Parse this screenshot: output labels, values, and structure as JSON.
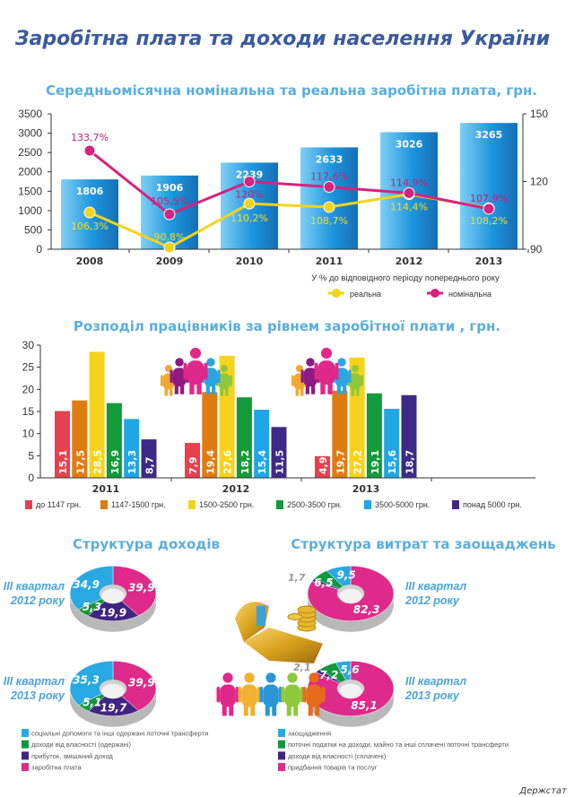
{
  "title": "Заробітна плата та доходи населення України",
  "source": "Держстат",
  "colors": {
    "title": "#3a5aa0",
    "subtitle": "#5aaee0",
    "bar_blue": "#1a8ed6",
    "real": "#f2d31b",
    "nominal": "#d6237f"
  },
  "chart_data": [
    {
      "type": "bar+line",
      "title": "Середньомісячна номінальна та реальна заробітна плата, грн.",
      "categories": [
        "2008",
        "2009",
        "2010",
        "2011",
        "2012",
        "2013"
      ],
      "bars": {
        "values": [
          1806,
          1906,
          2239,
          2633,
          3026,
          3265
        ],
        "labels": [
          "1806",
          "1906",
          "2239",
          "2633",
          "3026",
          "3265"
        ]
      },
      "ylim_left": [
        0,
        3500
      ],
      "yticks_left": [
        "0",
        "500",
        "1000",
        "1500",
        "2000",
        "2500",
        "3000",
        "3500"
      ],
      "ylim_right": [
        90,
        150
      ],
      "yticks_right": [
        "90",
        "120",
        "150"
      ],
      "note": "У % до відповідного періоду попереднього року",
      "series": [
        {
          "name": "реальна",
          "values": [
            106.3,
            90.8,
            110.2,
            108.7,
            114.4,
            108.2
          ],
          "labels": [
            "106,3%",
            "90,8%",
            "110,2%",
            "108,7%",
            "114,4%",
            "108,2%"
          ],
          "color": "#f2d31b"
        },
        {
          "name": "номінальна",
          "values": [
            133.7,
            105.5,
            120,
            117.6,
            114.9,
            107.9
          ],
          "labels": [
            "133,7%",
            "105,5%",
            "120%",
            "117,6%",
            "114,9%",
            "107,9%"
          ],
          "color": "#d6237f"
        }
      ],
      "legend": "bottom-right",
      "grid": false
    },
    {
      "type": "bar",
      "title": "Розподіл працівників за рівнем заробітної плати , грн.",
      "categories": [
        "2011",
        "2012",
        "2013"
      ],
      "ylim": [
        0,
        30
      ],
      "yticks": [
        "0",
        "5",
        "10",
        "15",
        "20",
        "25",
        "30"
      ],
      "series": [
        {
          "name": "до 1147 грн.",
          "color": "#e8404f",
          "values": [
            15.1,
            7.9,
            4.9
          ],
          "labels": [
            "15,1",
            "7,9",
            "4,9"
          ]
        },
        {
          "name": "1147-1500 грн.",
          "color": "#e07b12",
          "values": [
            17.5,
            19.4,
            19.7
          ],
          "labels": [
            "17,5",
            "19,4",
            "19,7"
          ]
        },
        {
          "name": "1500-2500 грн.",
          "color": "#f7d21a",
          "values": [
            28.5,
            27.6,
            27.2
          ],
          "labels": [
            "28,5",
            "27,6",
            "27,2"
          ]
        },
        {
          "name": "2500-3500 грн.",
          "color": "#139a3a",
          "values": [
            16.9,
            18.2,
            19.1
          ],
          "labels": [
            "16,9",
            "18,2",
            "19,1"
          ]
        },
        {
          "name": "3500-5000 грн.",
          "color": "#1ea6e6",
          "values": [
            13.3,
            15.4,
            15.6
          ],
          "labels": [
            "13,3",
            "15,4",
            "15,6"
          ]
        },
        {
          "name": "понад 5000 грн.",
          "color": "#3d2a86",
          "values": [
            8.7,
            11.5,
            18.7
          ],
          "labels": [
            "8,7",
            "11,5",
            "18,7"
          ]
        }
      ],
      "legend": "bottom",
      "grid": false
    },
    {
      "type": "pie",
      "title": "Структура доходів",
      "categories": [
        "соціальні допомоги та інші одержані поточні трансферти",
        "доходи від власності (одержані)",
        "прибуток, змішаний доход",
        "заробітна плата"
      ],
      "colors": [
        "#29a9e1",
        "#14973f",
        "#3f2580",
        "#de2a8a"
      ],
      "pies": [
        {
          "label_line1": "III квартал",
          "label_line2": "2012 року",
          "values": [
            34.9,
            5.3,
            19.9,
            39.9
          ],
          "labels": [
            "34,9",
            "5,3",
            "19,9",
            "39,9"
          ]
        },
        {
          "label_line1": "III квартал",
          "label_line2": "2013 року",
          "values": [
            35.3,
            5.1,
            19.7,
            39.9
          ],
          "labels": [
            "35,3",
            "5,1",
            "19,7",
            "39,9"
          ]
        }
      ],
      "legend": "bottom-left"
    },
    {
      "type": "pie",
      "title": "Структура витрат та заощаджень",
      "categories": [
        "заощадження",
        "поточні податки на доходи, майно та інші сплачені поточні трансферти",
        "доходи від власності (сплачені)",
        "придбання товарів та послуг"
      ],
      "colors": [
        "#29a9e1",
        "#14973f",
        "#3f2580",
        "#de2a8a"
      ],
      "pies": [
        {
          "label_line1": "III квартал",
          "label_line2": "2012 року",
          "values": [
            9.5,
            6.5,
            1.7,
            82.3
          ],
          "labels": [
            "9,5",
            "6,5",
            "1,7",
            "82,3"
          ]
        },
        {
          "label_line1": "III квартал",
          "label_line2": "2013 року",
          "values": [
            5.6,
            7.2,
            2.1,
            85.1
          ],
          "labels": [
            "5,6",
            "7,2",
            "2,1",
            "85,1"
          ]
        }
      ],
      "legend": "bottom-right"
    }
  ]
}
